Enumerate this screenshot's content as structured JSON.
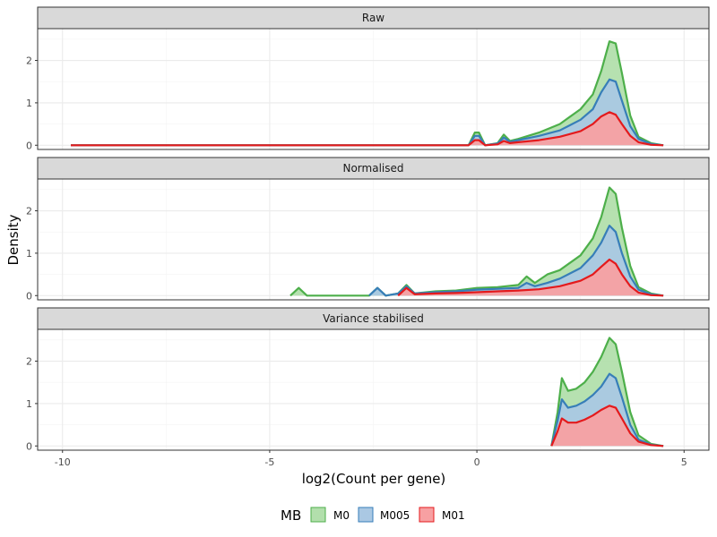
{
  "chart_data": {
    "type": "area",
    "xlabel": "log2(Count per gene)",
    "ylabel": "Density",
    "xlim": [
      -10.6,
      5.6
    ],
    "ylim": [
      -0.1,
      2.75
    ],
    "x_ticks": [
      -10,
      -5,
      0,
      5
    ],
    "x_tick_labels": [
      "-10",
      "-5",
      "0",
      "5"
    ],
    "y_ticks": [
      0,
      1,
      2
    ],
    "y_tick_labels": [
      "0",
      "1",
      "2"
    ],
    "grid": true,
    "legend": {
      "title": "MB",
      "position": "bottom",
      "entries": [
        "M0",
        "M005",
        "M01"
      ]
    },
    "colors": {
      "M0": {
        "fill": "#b2dfac",
        "line": "#4daf4a"
      },
      "M005": {
        "fill": "#aac8e3",
        "line": "#377eb8"
      },
      "M01": {
        "fill": "#f7a0a2",
        "line": "#e41a1c"
      }
    },
    "panels": [
      {
        "title": "Raw",
        "series": [
          {
            "name": "M0",
            "points": [
              [
                -9.8,
                0
              ],
              [
                -0.2,
                0
              ],
              [
                -0.05,
                0.3
              ],
              [
                0.05,
                0.3
              ],
              [
                0.2,
                0
              ],
              [
                0.5,
                0.05
              ],
              [
                0.65,
                0.25
              ],
              [
                0.8,
                0.1
              ],
              [
                1.0,
                0.15
              ],
              [
                1.5,
                0.3
              ],
              [
                2.0,
                0.5
              ],
              [
                2.5,
                0.85
              ],
              [
                2.8,
                1.2
              ],
              [
                3.0,
                1.75
              ],
              [
                3.2,
                2.45
              ],
              [
                3.35,
                2.4
              ],
              [
                3.5,
                1.7
              ],
              [
                3.7,
                0.7
              ],
              [
                3.9,
                0.2
              ],
              [
                4.2,
                0.05
              ],
              [
                4.5,
                0
              ]
            ]
          },
          {
            "name": "M005",
            "points": [
              [
                -9.8,
                0
              ],
              [
                -0.2,
                0
              ],
              [
                -0.05,
                0.22
              ],
              [
                0.05,
                0.22
              ],
              [
                0.2,
                0
              ],
              [
                0.5,
                0.04
              ],
              [
                0.65,
                0.18
              ],
              [
                0.8,
                0.08
              ],
              [
                1.0,
                0.12
              ],
              [
                1.5,
                0.22
              ],
              [
                2.0,
                0.35
              ],
              [
                2.5,
                0.6
              ],
              [
                2.8,
                0.85
              ],
              [
                3.0,
                1.25
              ],
              [
                3.2,
                1.55
              ],
              [
                3.35,
                1.5
              ],
              [
                3.5,
                1.05
              ],
              [
                3.7,
                0.45
              ],
              [
                3.9,
                0.15
              ],
              [
                4.2,
                0.03
              ],
              [
                4.5,
                0
              ]
            ]
          },
          {
            "name": "M01",
            "points": [
              [
                -9.8,
                0
              ],
              [
                -0.2,
                0
              ],
              [
                -0.05,
                0.12
              ],
              [
                0.05,
                0.12
              ],
              [
                0.2,
                0
              ],
              [
                0.5,
                0.02
              ],
              [
                0.65,
                0.1
              ],
              [
                0.8,
                0.05
              ],
              [
                1.0,
                0.07
              ],
              [
                1.5,
                0.12
              ],
              [
                2.0,
                0.2
              ],
              [
                2.5,
                0.33
              ],
              [
                2.8,
                0.5
              ],
              [
                3.0,
                0.68
              ],
              [
                3.2,
                0.78
              ],
              [
                3.35,
                0.72
              ],
              [
                3.5,
                0.5
              ],
              [
                3.7,
                0.22
              ],
              [
                3.9,
                0.07
              ],
              [
                4.2,
                0.01
              ],
              [
                4.5,
                0
              ]
            ]
          }
        ]
      },
      {
        "title": "Normalised",
        "series": [
          {
            "name": "M0",
            "points": [
              [
                -4.5,
                0
              ],
              [
                -4.3,
                0.18
              ],
              [
                -4.1,
                0
              ],
              [
                -2.6,
                0
              ],
              [
                -2.4,
                0.18
              ],
              [
                -2.2,
                0
              ],
              [
                -1.9,
                0.05
              ],
              [
                -1.7,
                0.25
              ],
              [
                -1.5,
                0.05
              ],
              [
                -1.0,
                0.1
              ],
              [
                -0.5,
                0.12
              ],
              [
                0,
                0.18
              ],
              [
                0.5,
                0.2
              ],
              [
                1.0,
                0.25
              ],
              [
                1.2,
                0.45
              ],
              [
                1.4,
                0.3
              ],
              [
                1.7,
                0.5
              ],
              [
                2.0,
                0.6
              ],
              [
                2.5,
                0.95
              ],
              [
                2.8,
                1.35
              ],
              [
                3.0,
                1.85
              ],
              [
                3.2,
                2.55
              ],
              [
                3.35,
                2.4
              ],
              [
                3.5,
                1.6
              ],
              [
                3.7,
                0.7
              ],
              [
                3.9,
                0.2
              ],
              [
                4.2,
                0.05
              ],
              [
                4.5,
                0
              ]
            ]
          },
          {
            "name": "M005",
            "points": [
              [
                -2.6,
                0
              ],
              [
                -2.4,
                0.18
              ],
              [
                -2.2,
                0
              ],
              [
                -1.9,
                0.05
              ],
              [
                -1.7,
                0.22
              ],
              [
                -1.5,
                0.05
              ],
              [
                -1.0,
                0.08
              ],
              [
                -0.5,
                0.1
              ],
              [
                0,
                0.14
              ],
              [
                0.5,
                0.16
              ],
              [
                1.0,
                0.18
              ],
              [
                1.2,
                0.3
              ],
              [
                1.4,
                0.22
              ],
              [
                1.7,
                0.3
              ],
              [
                2.0,
                0.4
              ],
              [
                2.5,
                0.65
              ],
              [
                2.8,
                0.95
              ],
              [
                3.0,
                1.25
              ],
              [
                3.2,
                1.65
              ],
              [
                3.35,
                1.5
              ],
              [
                3.5,
                1.0
              ],
              [
                3.7,
                0.45
              ],
              [
                3.9,
                0.14
              ],
              [
                4.2,
                0.03
              ],
              [
                4.5,
                0
              ]
            ]
          },
          {
            "name": "M01",
            "points": [
              [
                -1.9,
                0
              ],
              [
                -1.7,
                0.18
              ],
              [
                -1.5,
                0.03
              ],
              [
                -1.0,
                0.05
              ],
              [
                -0.5,
                0.06
              ],
              [
                0,
                0.08
              ],
              [
                0.5,
                0.1
              ],
              [
                1.0,
                0.12
              ],
              [
                1.5,
                0.15
              ],
              [
                2.0,
                0.22
              ],
              [
                2.5,
                0.35
              ],
              [
                2.8,
                0.5
              ],
              [
                3.0,
                0.68
              ],
              [
                3.2,
                0.85
              ],
              [
                3.35,
                0.75
              ],
              [
                3.5,
                0.5
              ],
              [
                3.7,
                0.22
              ],
              [
                3.9,
                0.07
              ],
              [
                4.2,
                0.01
              ],
              [
                4.5,
                0
              ]
            ]
          }
        ]
      },
      {
        "title": "Variance stabilised",
        "series": [
          {
            "name": "M0",
            "points": [
              [
                1.8,
                0
              ],
              [
                1.95,
                0.8
              ],
              [
                2.05,
                1.6
              ],
              [
                2.2,
                1.3
              ],
              [
                2.4,
                1.35
              ],
              [
                2.6,
                1.5
              ],
              [
                2.8,
                1.75
              ],
              [
                3.0,
                2.1
              ],
              [
                3.2,
                2.55
              ],
              [
                3.35,
                2.4
              ],
              [
                3.5,
                1.75
              ],
              [
                3.7,
                0.8
              ],
              [
                3.9,
                0.25
              ],
              [
                4.2,
                0.05
              ],
              [
                4.5,
                0
              ]
            ]
          },
          {
            "name": "M005",
            "points": [
              [
                1.8,
                0
              ],
              [
                1.95,
                0.6
              ],
              [
                2.05,
                1.1
              ],
              [
                2.2,
                0.9
              ],
              [
                2.4,
                0.95
              ],
              [
                2.6,
                1.05
              ],
              [
                2.8,
                1.2
              ],
              [
                3.0,
                1.4
              ],
              [
                3.2,
                1.7
              ],
              [
                3.35,
                1.6
              ],
              [
                3.5,
                1.15
              ],
              [
                3.7,
                0.5
              ],
              [
                3.9,
                0.15
              ],
              [
                4.2,
                0.03
              ],
              [
                4.5,
                0
              ]
            ]
          },
          {
            "name": "M01",
            "points": [
              [
                1.8,
                0
              ],
              [
                1.95,
                0.35
              ],
              [
                2.05,
                0.65
              ],
              [
                2.2,
                0.55
              ],
              [
                2.4,
                0.55
              ],
              [
                2.6,
                0.62
              ],
              [
                2.8,
                0.72
              ],
              [
                3.0,
                0.85
              ],
              [
                3.2,
                0.95
              ],
              [
                3.35,
                0.9
              ],
              [
                3.5,
                0.65
              ],
              [
                3.7,
                0.3
              ],
              [
                3.9,
                0.1
              ],
              [
                4.2,
                0.02
              ],
              [
                4.5,
                0
              ]
            ]
          }
        ]
      }
    ]
  }
}
